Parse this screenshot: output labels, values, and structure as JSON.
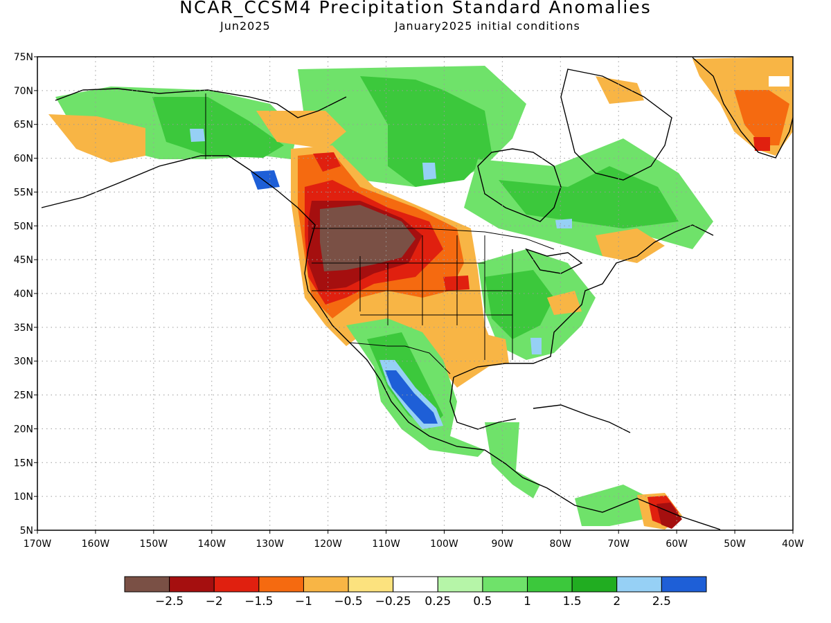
{
  "header": {
    "title": "NCAR_CCSM4 Precipitation Standard Anomalies",
    "valid_month": "Jun2025",
    "init_conditions": "January2025 initial conditions"
  },
  "axes": {
    "lat_labels": [
      "75N",
      "70N",
      "65N",
      "60N",
      "55N",
      "50N",
      "45N",
      "40N",
      "35N",
      "30N",
      "25N",
      "20N",
      "15N",
      "10N",
      "5N"
    ],
    "lon_labels": [
      "170W",
      "160W",
      "150W",
      "140W",
      "130W",
      "120W",
      "110W",
      "100W",
      "90W",
      "80W",
      "70W",
      "60W",
      "50W",
      "40W"
    ]
  },
  "colorbar": {
    "colors": [
      "#7a5045",
      "#a50f0f",
      "#e0200f",
      "#f56a10",
      "#f8b545",
      "#fce27e",
      "#ffffff",
      "#b6f5a8",
      "#6fe26a",
      "#3cc83c",
      "#21ad21",
      "#96d0f5",
      "#1e5fd7"
    ],
    "labels": [
      "-2.5",
      "-2",
      "-1.5",
      "-1",
      "-0.5",
      "-0.25",
      "0.25",
      "0.5",
      "1",
      "1.5",
      "2",
      "2.5"
    ]
  },
  "map_colors": {
    "land_outline": "#000000",
    "grid": "#9a9a9a"
  }
}
